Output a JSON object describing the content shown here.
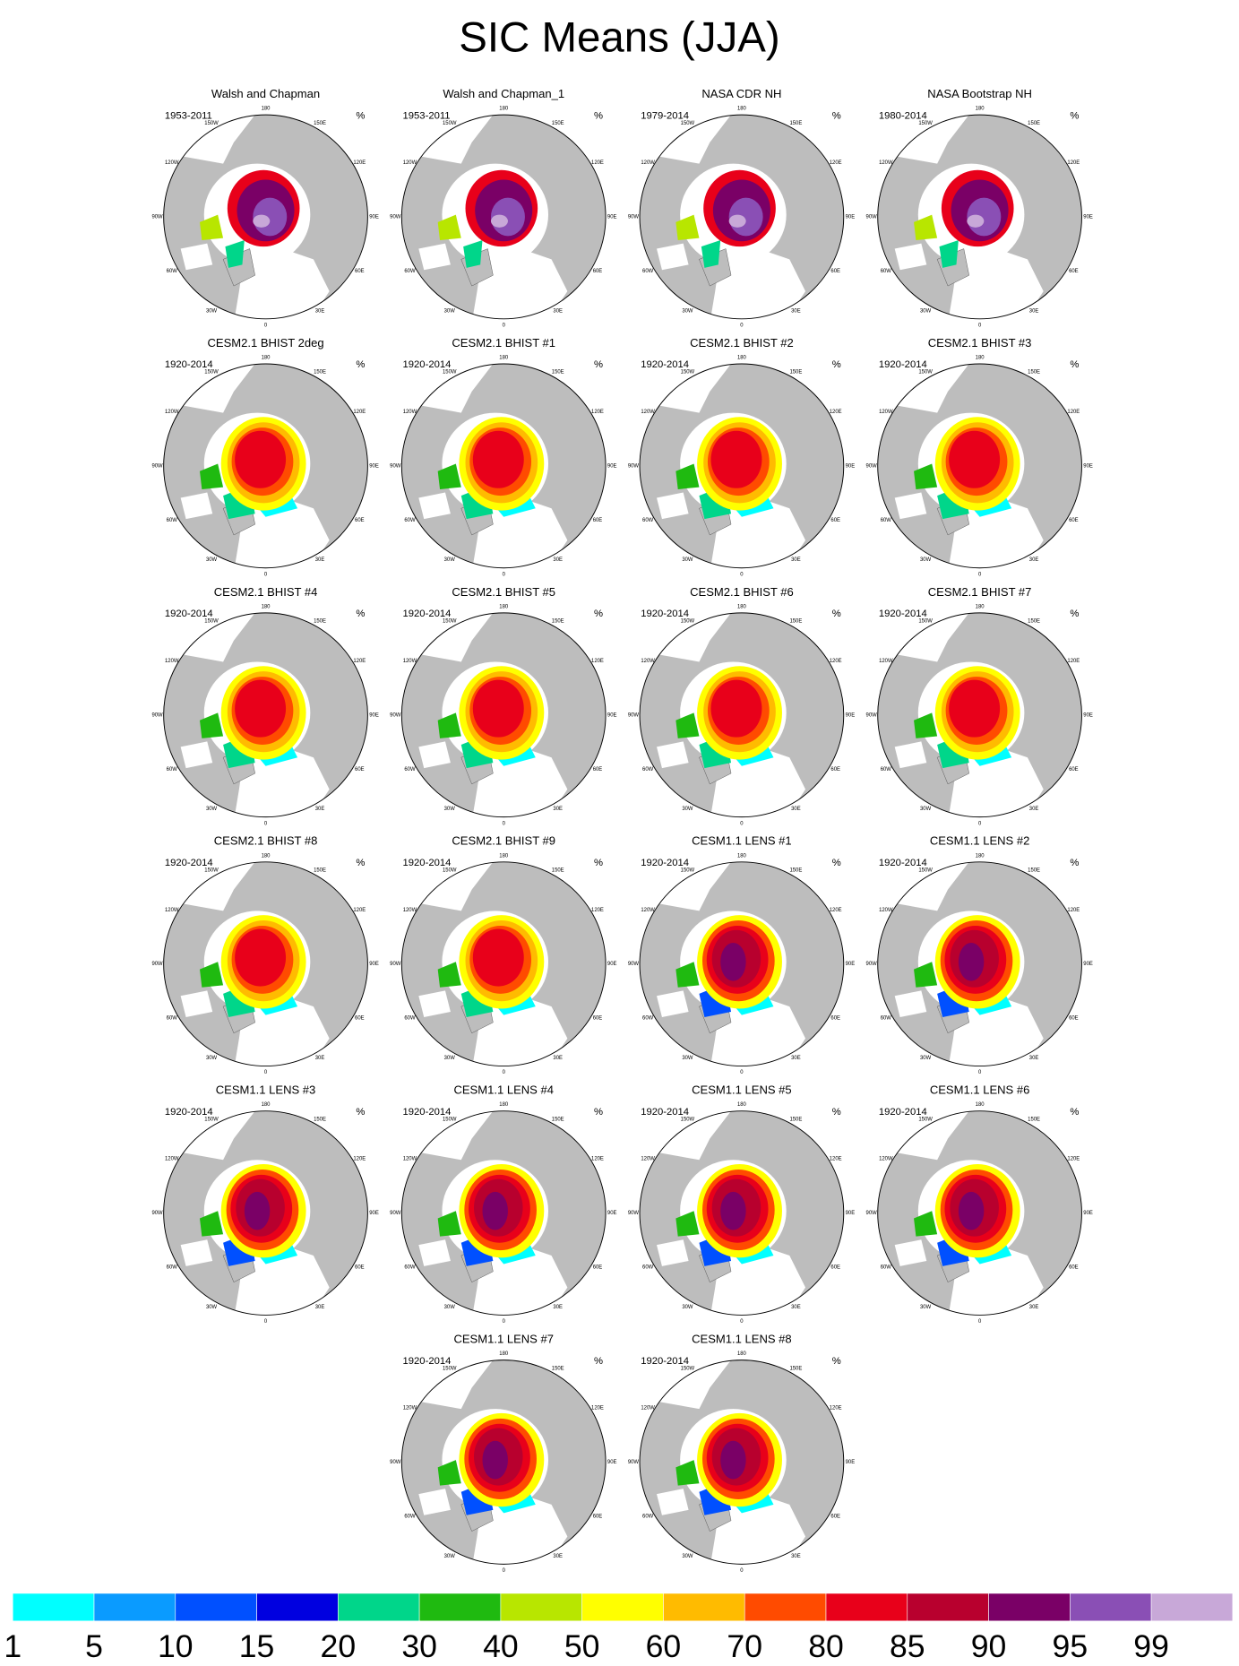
{
  "title": "SIC Means (JJA)",
  "unit": "%",
  "lon_labels": [
    {
      "value": 180,
      "label": "180"
    },
    {
      "value": 150,
      "label": "150E"
    },
    {
      "value": 120,
      "label": "120E"
    },
    {
      "value": 90,
      "label": "90E"
    },
    {
      "value": 60,
      "label": "60E"
    },
    {
      "value": 30,
      "label": "30E"
    },
    {
      "value": 0,
      "label": "0"
    },
    {
      "value": -30,
      "label": "30W"
    },
    {
      "value": -60,
      "label": "60W"
    },
    {
      "value": -90,
      "label": "90W"
    },
    {
      "value": -120,
      "label": "120W"
    },
    {
      "value": -150,
      "label": "150W"
    }
  ],
  "panels": [
    {
      "title": "Walsh and Chapman",
      "period": "1953-2011"
    },
    {
      "title": "Walsh and Chapman_1",
      "period": "1953-2011"
    },
    {
      "title": "NASA CDR NH",
      "period": "1979-2014"
    },
    {
      "title": "NASA Bootstrap NH",
      "period": "1980-2014"
    },
    {
      "title": "CESM2.1 BHIST 2deg",
      "period": "1920-2014"
    },
    {
      "title": "CESM2.1 BHIST #1",
      "period": "1920-2014"
    },
    {
      "title": "CESM2.1 BHIST #2",
      "period": "1920-2014"
    },
    {
      "title": "CESM2.1 BHIST #3",
      "period": "1920-2014"
    },
    {
      "title": "CESM2.1 BHIST #4",
      "period": "1920-2014"
    },
    {
      "title": "CESM2.1 BHIST #5",
      "period": "1920-2014"
    },
    {
      "title": "CESM2.1 BHIST #6",
      "period": "1920-2014"
    },
    {
      "title": "CESM2.1 BHIST #7",
      "period": "1920-2014"
    },
    {
      "title": "CESM2.1 BHIST #8",
      "period": "1920-2014"
    },
    {
      "title": "CESM2.1 BHIST #9",
      "period": "1920-2014"
    },
    {
      "title": "CESM1.1 LENS #1",
      "period": "1920-2014"
    },
    {
      "title": "CESM1.1 LENS #2",
      "period": "1920-2014"
    },
    {
      "title": "CESM1.1 LENS #3",
      "period": "1920-2014"
    },
    {
      "title": "CESM1.1 LENS #4",
      "period": "1920-2014"
    },
    {
      "title": "CESM1.1 LENS #5",
      "period": "1920-2014"
    },
    {
      "title": "CESM1.1 LENS #6",
      "period": "1920-2014"
    },
    {
      "title": "CESM1.1 LENS #7",
      "period": "1920-2014"
    },
    {
      "title": "CESM1.1 LENS #8",
      "period": "1920-2014"
    }
  ],
  "colorbar": {
    "levels": [
      1,
      5,
      10,
      15,
      20,
      30,
      40,
      50,
      60,
      70,
      80,
      85,
      90,
      95,
      99
    ],
    "colors": [
      "#00ffff",
      "#0a9bff",
      "#0050ff",
      "#0000e0",
      "#00d68a",
      "#1fba10",
      "#b8e600",
      "#ffff00",
      "#ffbb00",
      "#ff4b00",
      "#e8001a",
      "#b8002e",
      "#7a0066",
      "#8a4fb5",
      "#c8a8d8"
    ]
  }
}
